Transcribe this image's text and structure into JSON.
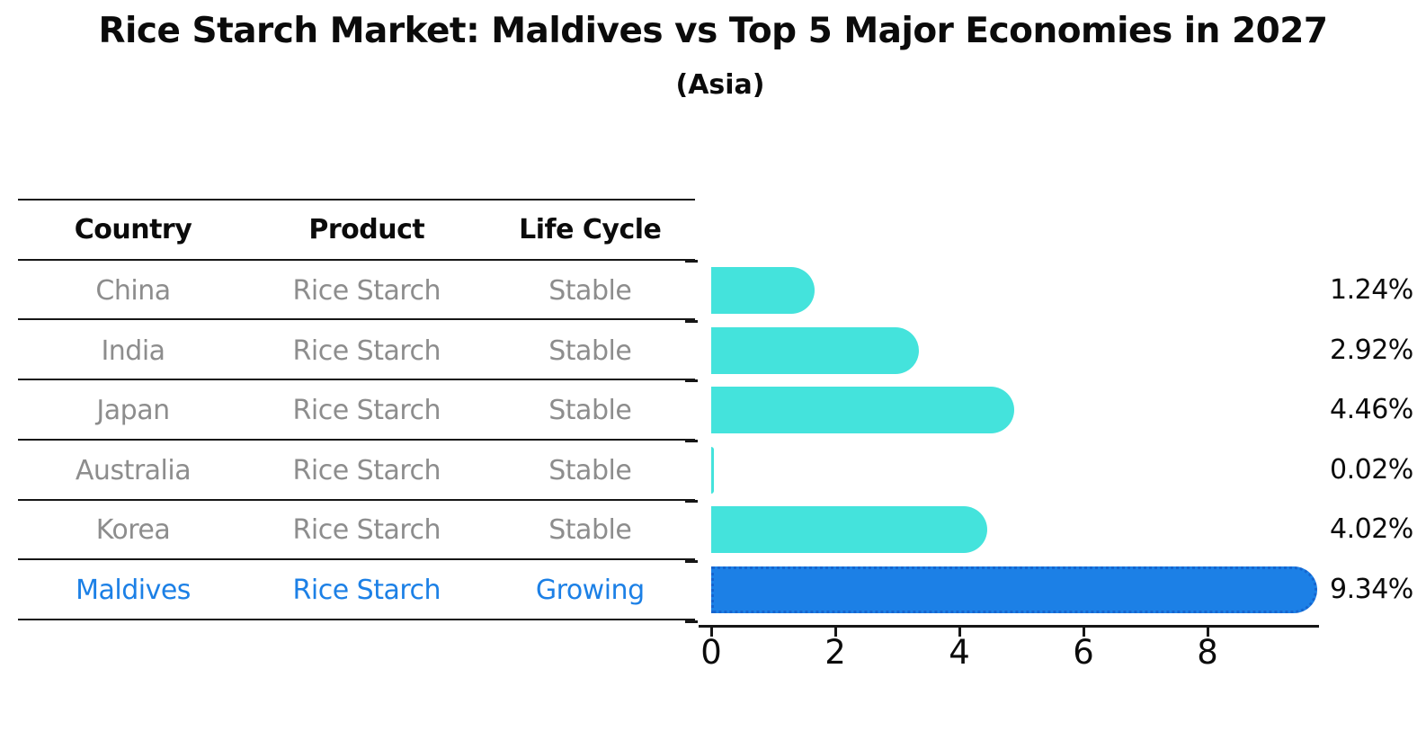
{
  "title": "Rice Starch Market: Maldives vs Top 5 Major Economies in 2027",
  "subtitle": "(Asia)",
  "table": {
    "columns": [
      "Country",
      "Product",
      "Life Cycle"
    ],
    "rows": [
      {
        "country": "China",
        "product": "Rice Starch",
        "life_cycle": "Stable",
        "highlight": false
      },
      {
        "country": "India",
        "product": "Rice Starch",
        "life_cycle": "Stable",
        "highlight": false
      },
      {
        "country": "Japan",
        "product": "Rice Starch",
        "life_cycle": "Stable",
        "highlight": false
      },
      {
        "country": "Australia",
        "product": "Rice Starch",
        "life_cycle": "Stable",
        "highlight": false
      },
      {
        "country": "Korea",
        "product": "Rice Starch",
        "life_cycle": "Stable",
        "highlight": false
      },
      {
        "country": "Maldives",
        "product": "Rice Starch",
        "life_cycle": "Growing",
        "highlight": true
      }
    ]
  },
  "chart_data": {
    "type": "bar",
    "orientation": "horizontal",
    "title": "Rice Starch Market: Maldives vs Top 5 Major Economies in 2027",
    "subtitle": "(Asia)",
    "categories": [
      "China",
      "India",
      "Japan",
      "Australia",
      "Korea",
      "Maldives"
    ],
    "values": [
      1.24,
      2.92,
      4.46,
      0.02,
      4.02,
      9.34
    ],
    "value_labels": [
      "1.24%",
      "2.92%",
      "4.46%",
      "0.02%",
      "4.02%",
      "9.34%"
    ],
    "x_ticks": [
      "0",
      "2",
      "4",
      "6",
      "8"
    ],
    "xlim": [
      0,
      9.8
    ],
    "grid": false,
    "legend": null,
    "highlight_index": 5,
    "colors": {
      "bar_default": "#44E3DC",
      "bar_highlight": "#1C80E6",
      "highlight_border": "#1565CF",
      "row_text": "#8D8D8D",
      "highlight_text": "#1C80E6",
      "ink": "#0b0b0b"
    }
  }
}
